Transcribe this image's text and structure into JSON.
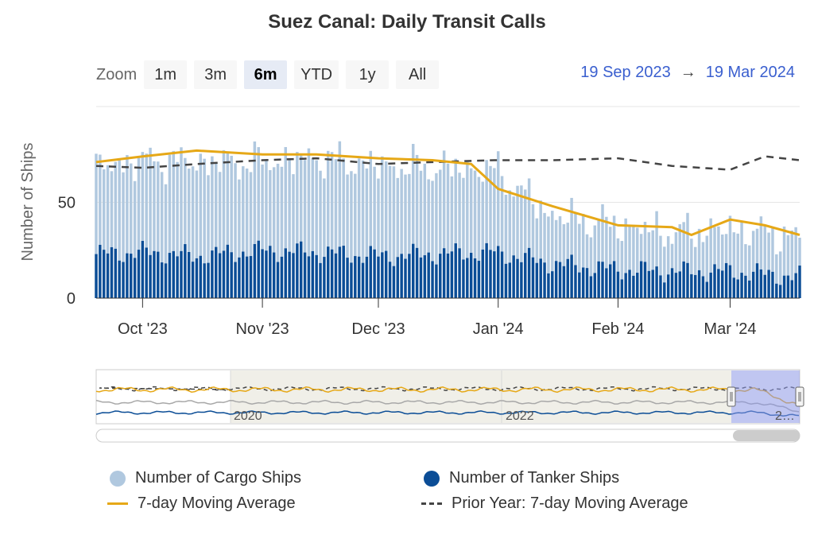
{
  "title": "Suez Canal: Daily Transit Calls",
  "zoom": {
    "label": "Zoom",
    "buttons": [
      "1m",
      "3m",
      "6m",
      "YTD",
      "1y",
      "All"
    ],
    "selected": "6m"
  },
  "range": {
    "from": "19 Sep 2023",
    "arrow": "→",
    "to": "19 Mar 2024"
  },
  "navigator": {
    "labels": [
      "2020",
      "2022",
      "2…"
    ]
  },
  "colors": {
    "cargo": "#b0c8df",
    "tanker": "#0b4d96",
    "ma": "#e6a817",
    "prior": "#444444",
    "selection": "#8d98e6"
  },
  "legend": {
    "cargo": "Number of Cargo Ships",
    "tanker": "Number of Tanker Ships",
    "ma": "7-day Moving Average",
    "prior": "Prior Year: 7-day Moving Average"
  },
  "chart_data": {
    "type": "bar",
    "stacked": true,
    "ylabel": "Number of Ships",
    "ylim": [
      0,
      100
    ],
    "yticks": [
      0,
      50
    ],
    "grid": true,
    "legend_position": "bottom",
    "x_start": "2023-09-19",
    "x_end": "2024-03-19",
    "xticks": [
      {
        "date": "2023-10-01",
        "label": "Oct '23"
      },
      {
        "date": "2023-11-01",
        "label": "Nov '23"
      },
      {
        "date": "2023-12-01",
        "label": "Dec '23"
      },
      {
        "date": "2024-01-01",
        "label": "Jan '24"
      },
      {
        "date": "2024-02-01",
        "label": "Feb '24"
      },
      {
        "date": "2024-03-01",
        "label": "Mar '24"
      }
    ],
    "series": [
      {
        "name": "Number of Cargo Ships",
        "type": "bar",
        "x": [
          "2023-09-19",
          "2023-10-01",
          "2023-10-15",
          "2023-11-01",
          "2023-11-15",
          "2023-12-01",
          "2023-12-15",
          "2023-12-31",
          "2024-01-15",
          "2024-02-01",
          "2024-02-15",
          "2024-03-01",
          "2024-03-19"
        ],
        "values": [
          45,
          48,
          49,
          46,
          49,
          47,
          45,
          43,
          25,
          23,
          20,
          22,
          21
        ]
      },
      {
        "name": "Number of Tanker Ships",
        "type": "bar",
        "x": [
          "2023-09-19",
          "2023-10-01",
          "2023-10-15",
          "2023-11-01",
          "2023-11-15",
          "2023-12-01",
          "2023-12-15",
          "2023-12-31",
          "2024-01-15",
          "2024-02-01",
          "2024-02-15",
          "2024-03-01",
          "2024-03-19"
        ],
        "values": [
          23,
          24,
          22,
          25,
          24,
          22,
          23,
          24,
          18,
          15,
          14,
          14,
          11
        ]
      },
      {
        "name": "7-day Moving Average",
        "type": "line",
        "x": [
          "2023-09-19",
          "2023-10-01",
          "2023-10-15",
          "2023-11-01",
          "2023-11-15",
          "2023-12-01",
          "2023-12-15",
          "2023-12-25",
          "2024-01-01",
          "2024-01-15",
          "2024-02-01",
          "2024-02-15",
          "2024-02-20",
          "2024-03-01",
          "2024-03-10",
          "2024-03-19"
        ],
        "values": [
          71,
          74,
          77,
          75,
          75,
          73,
          72,
          70,
          57,
          48,
          38,
          37,
          33,
          41,
          38,
          33
        ]
      },
      {
        "name": "Prior Year: 7-day Moving Average",
        "type": "line",
        "dash": true,
        "x": [
          "2023-09-19",
          "2023-10-01",
          "2023-10-15",
          "2023-11-01",
          "2023-11-15",
          "2023-12-01",
          "2023-12-15",
          "2023-12-31",
          "2024-01-15",
          "2024-02-01",
          "2024-02-15",
          "2024-03-01",
          "2024-03-10",
          "2024-03-19"
        ],
        "values": [
          69,
          68,
          70,
          72,
          73,
          70,
          71,
          72,
          72,
          73,
          69,
          67,
          74,
          72
        ]
      }
    ]
  }
}
